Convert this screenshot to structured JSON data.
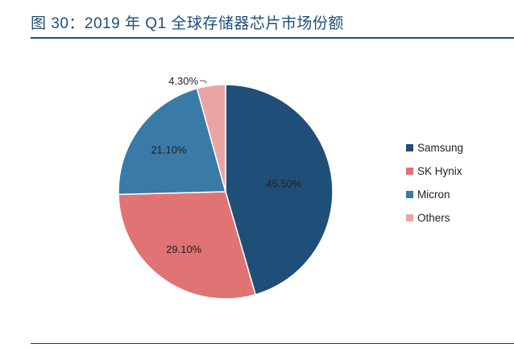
{
  "title": "图 30：2019 年 Q1 全球存储器芯片市场份额",
  "chart_data": {
    "type": "pie",
    "title": "图 30：2019 年 Q1 全球存储器芯片市场份额",
    "slices": [
      {
        "name": "Samsung",
        "value": 45.5,
        "label": "45.50%",
        "color": "#1f4e79"
      },
      {
        "name": "SK Hynix",
        "value": 29.1,
        "label": "29.10%",
        "color": "#e07373"
      },
      {
        "name": "Micron",
        "value": 21.1,
        "label": "21.10%",
        "color": "#3a7aa6"
      },
      {
        "name": "Others",
        "value": 4.3,
        "label": "4.30%",
        "color": "#eba4a4"
      }
    ],
    "legend_position": "right"
  }
}
